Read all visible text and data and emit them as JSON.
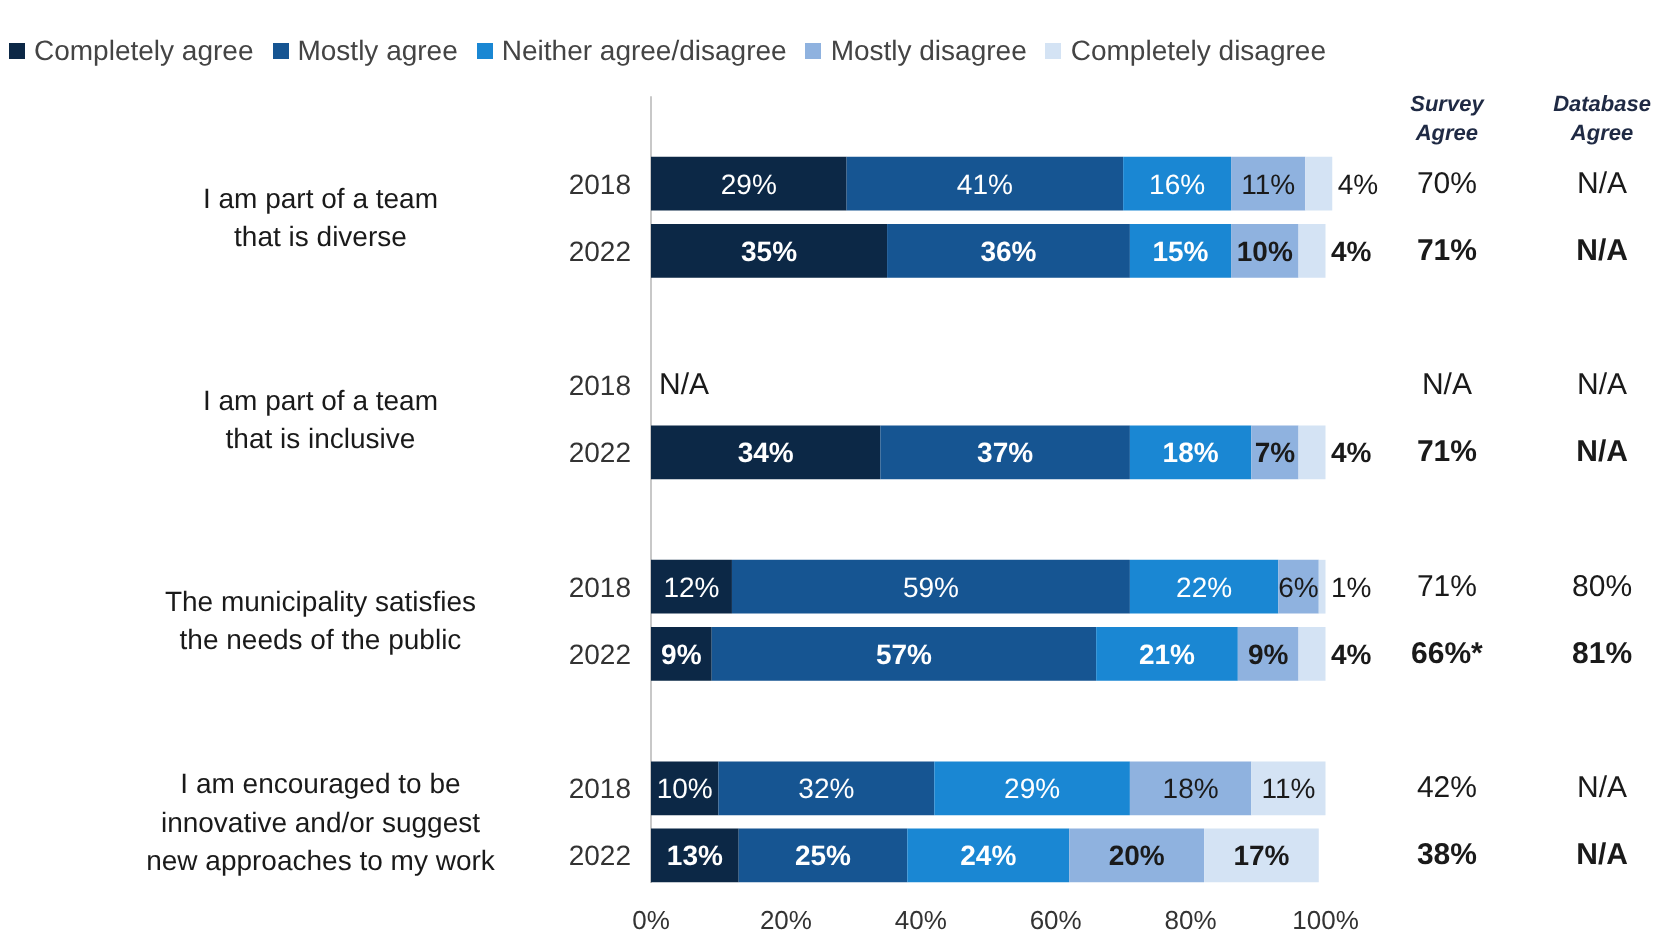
{
  "chart_data": {
    "type": "bar",
    "orientation": "horizontal",
    "stacked": true,
    "legend": "top",
    "grid": false,
    "categories": [
      "2018",
      "2022",
      "2018",
      "2022",
      "2018",
      "2022",
      "2018",
      "2022"
    ],
    "xlim": [
      0,
      102
    ],
    "xticks": [
      {
        "value": 0,
        "label": "0%"
      },
      {
        "value": 20,
        "label": "20%"
      },
      {
        "value": 40,
        "label": "40%"
      },
      {
        "value": 60,
        "label": "60%"
      },
      {
        "value": 80,
        "label": "80%"
      },
      {
        "value": 100,
        "label": "100%"
      }
    ],
    "series": [
      {
        "name": "Completely agree",
        "color": "#0c2846",
        "values": [
          29,
          35,
          null,
          34,
          12,
          9,
          10,
          13
        ],
        "value_labels": [
          "29%",
          "35%",
          null,
          "34%",
          "12%",
          "9%",
          "10%",
          "13%"
        ]
      },
      {
        "name": "Mostly agree",
        "color": "#165592",
        "values": [
          41,
          36,
          null,
          37,
          59,
          57,
          32,
          25
        ],
        "value_labels": [
          "41%",
          "36%",
          null,
          "37%",
          "59%",
          "57%",
          "32%",
          "25%"
        ]
      },
      {
        "name": "Neither agree/disagree",
        "color": "#1a87d3",
        "values": [
          16,
          15,
          null,
          18,
          22,
          21,
          29,
          24
        ],
        "value_labels": [
          "16%",
          "15%",
          null,
          "18%",
          "22%",
          "21%",
          "29%",
          "24%"
        ]
      },
      {
        "name": "Mostly disagree",
        "color": "#8fb2df",
        "values": [
          11,
          10,
          null,
          7,
          6,
          9,
          18,
          20
        ],
        "value_labels": [
          "11%",
          "10%",
          null,
          "7%",
          "6%",
          "9%",
          "18%",
          "20%"
        ]
      },
      {
        "name": "Completely disagree",
        "color": "#d4e3f4",
        "values": [
          4,
          4,
          null,
          4,
          1,
          4,
          11,
          17
        ],
        "value_labels": [
          "4%",
          "4%",
          null,
          "4%",
          "1%",
          "4%",
          "11%",
          "17%"
        ]
      }
    ],
    "annotations": [
      "I am part of a team\nthat is diverse",
      "I am part of a team\nthat is inclusive",
      "The municipality satisfies\nthe needs of the public",
      "I am encouraged to be\ninnovative and/or suggest\nnew approaches to my work",
      "N/A",
      "Survey Agree",
      "Database Agree",
      "70%",
      "N/A",
      "71%",
      "N/A",
      "N/A",
      "N/A",
      "71%",
      "N/A",
      "71%",
      "80%",
      "66%*",
      "81%",
      "42%",
      "N/A",
      "38%",
      "N/A"
    ]
  }
}
